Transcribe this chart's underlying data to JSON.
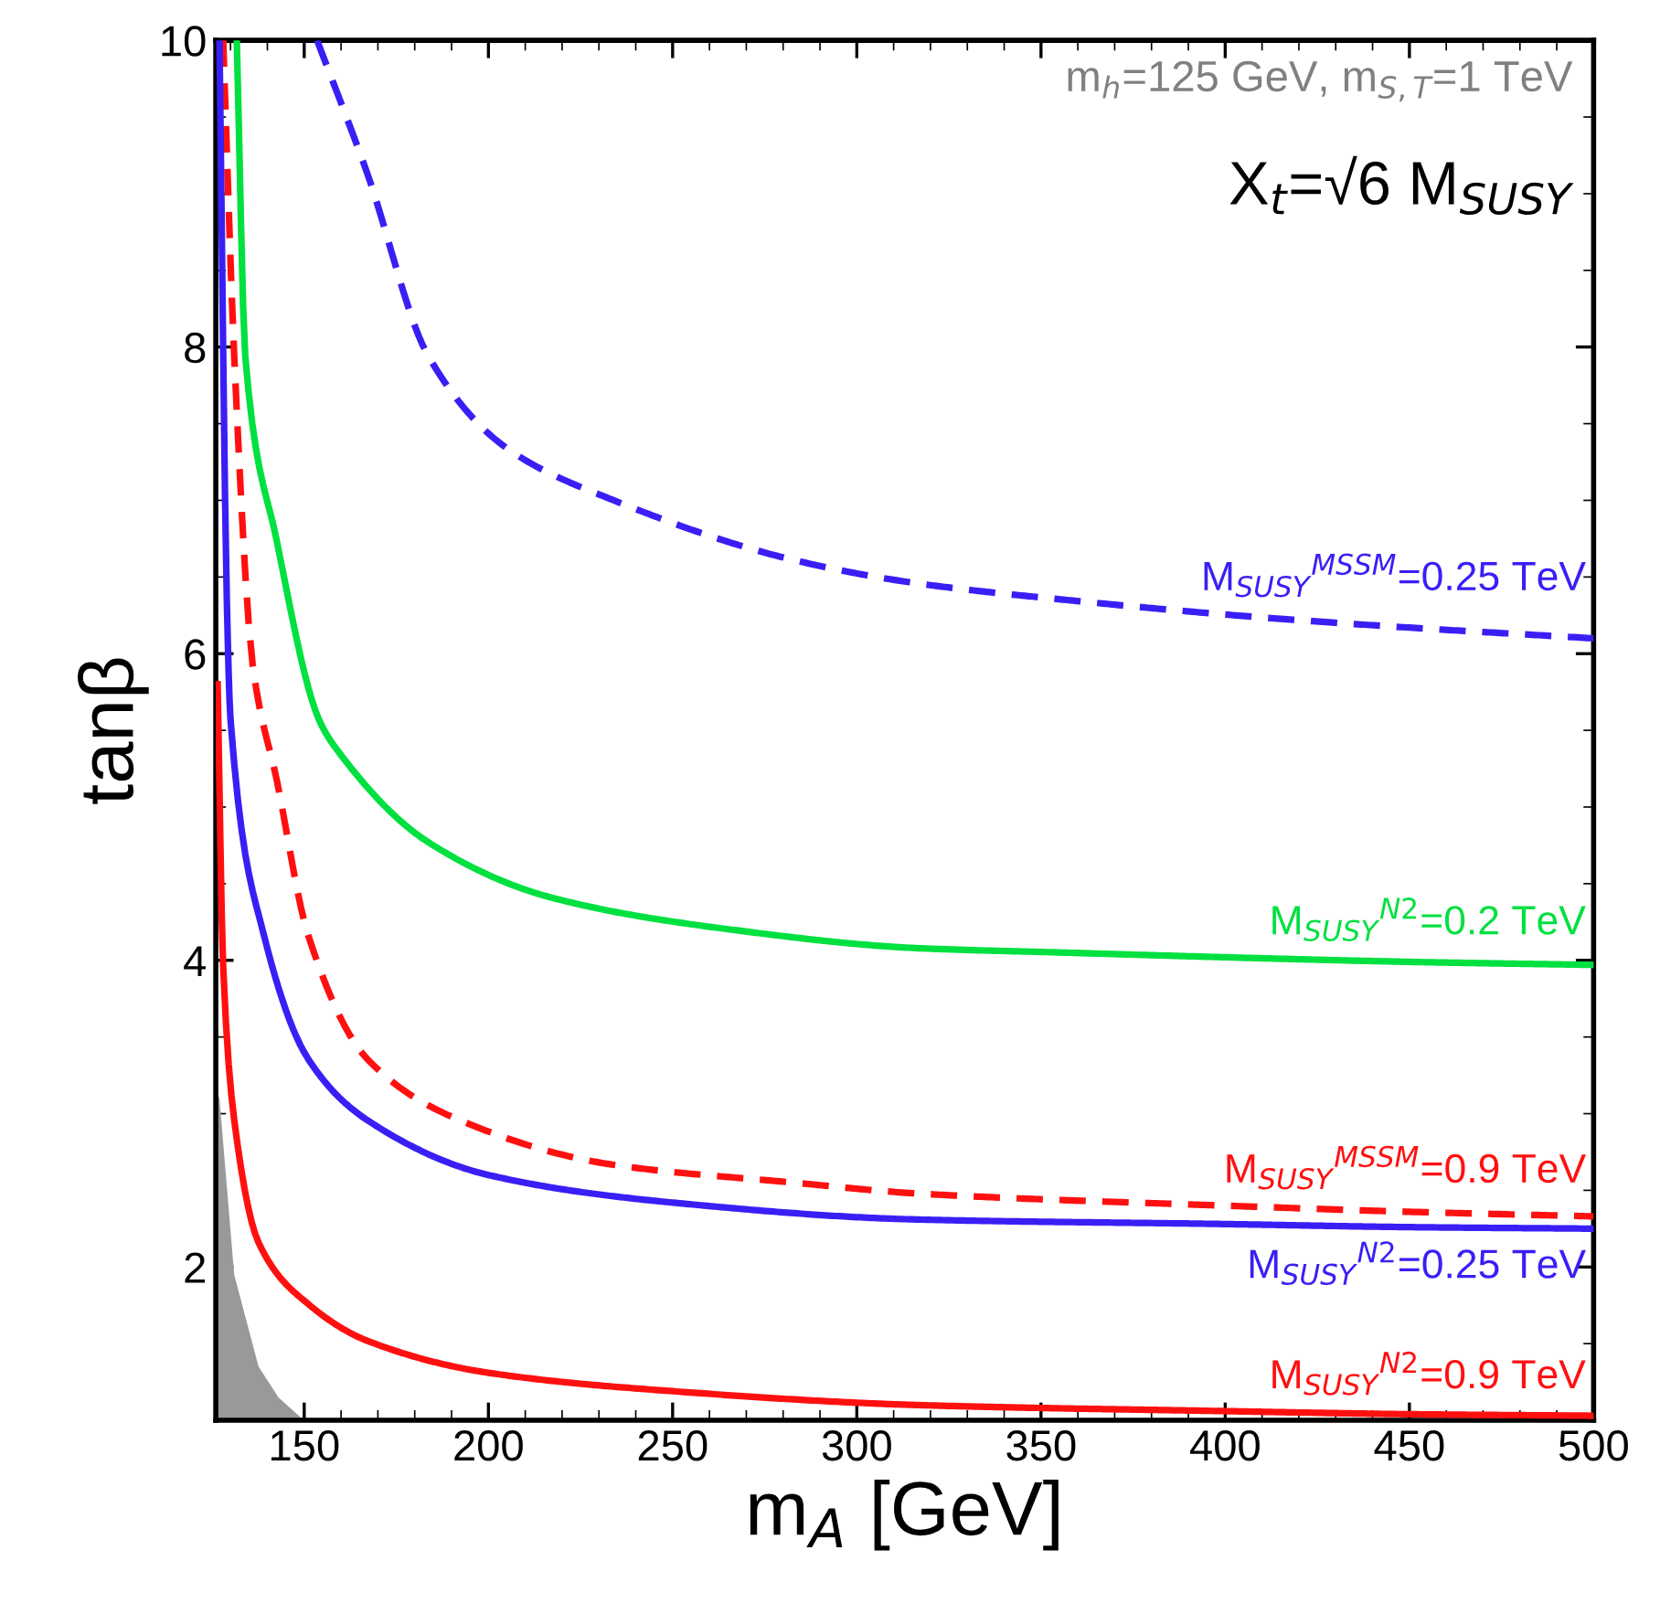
{
  "chart_data": {
    "type": "line",
    "xlabel": "m$_{A}$ [GeV]",
    "ylabel": "tanβ",
    "xlim": [
      126,
      500
    ],
    "ylim": [
      1,
      10
    ],
    "xticks": [
      150,
      200,
      250,
      300,
      350,
      400,
      450,
      500
    ],
    "yticks": [
      2,
      4,
      6,
      8,
      10
    ],
    "grid": false,
    "legend": false,
    "annotations": [
      "m$_{h}$=125 GeV, m$_{S,T}$=1 TeV",
      "X$_{t}$=√6 M$_{SUSY}$"
    ],
    "series": [
      {
        "name": "M$_{SUSY}$$^{MSSM}$=0.25 TeV",
        "color": "#3a1ff5",
        "line_style": "dashed",
        "x": [
          153.5,
          167,
          183.7,
          205,
          233,
          283,
          316,
          357,
          408,
          450,
          500
        ],
        "values": [
          10,
          9.14,
          7.94,
          7.34,
          7.01,
          6.61,
          6.46,
          6.35,
          6.24,
          6.17,
          6.1
        ]
      },
      {
        "name": "M$_{SUSY}$$^{N2}$=0.2 TeV",
        "color": "#00e040",
        "line_style": "solid",
        "x": [
          131.7,
          134,
          142.6,
          154,
          159,
          183.7,
          217,
          266,
          316,
          357,
          400,
          450,
          500
        ],
        "values": [
          10,
          7.94,
          6.73,
          5.57,
          5.37,
          4.77,
          4.41,
          4.2,
          4.08,
          4.05,
          4.02,
          3.99,
          3.97
        ]
      },
      {
        "name": "M$_{SUSY}$$^{MSSM}$=0.9 TeV",
        "color": "#ff1010",
        "line_style": "dashed",
        "x": [
          128,
          131,
          136,
          142.6,
          151,
          167,
          192,
          233,
          283,
          316,
          400,
          450,
          500
        ],
        "values": [
          10,
          7.94,
          5.93,
          5.17,
          4.17,
          3.36,
          2.96,
          2.67,
          2.55,
          2.48,
          2.4,
          2.36,
          2.33
        ]
      },
      {
        "name": "M$_{SUSY}$$^{N2}$=0.25 TeV",
        "color": "#3a1ff5",
        "line_style": "solid",
        "x": [
          127,
          129,
          130,
          139,
          151,
          167,
          200,
          250,
          316,
          400,
          450,
          500
        ],
        "values": [
          10,
          6.34,
          5.57,
          4.17,
          3.36,
          2.96,
          2.6,
          2.42,
          2.31,
          2.28,
          2.26,
          2.25
        ]
      },
      {
        "name": "M$_{SUSY}$$^{N2}$=0.9 TeV",
        "color": "#ff1010",
        "line_style": "solid",
        "x": [
          126.5,
          128,
          131,
          137.6,
          151,
          167,
          200,
          250,
          316,
          400,
          450,
          500
        ],
        "values": [
          5.8,
          3.96,
          2.96,
          2.16,
          1.76,
          1.52,
          1.31,
          1.19,
          1.1,
          1.06,
          1.04,
          1.03
        ]
      },
      {
        "type": "area",
        "color": "#999999",
        "x": [
          126,
          127,
          131,
          137.6,
          143,
          149,
          152
        ],
        "values": [
          3.16,
          3.1,
          1.95,
          1.35,
          1.15,
          1.02,
          1
        ]
      }
    ]
  }
}
